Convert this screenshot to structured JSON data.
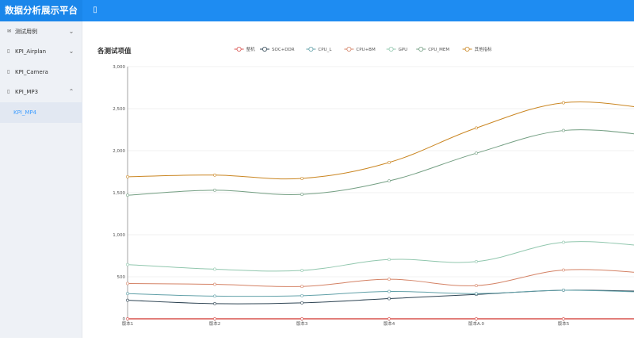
{
  "app": {
    "title": "数据分析展示平台",
    "menu_toggle_icon": "menu-icon"
  },
  "sidebar": {
    "items": [
      {
        "label": "测试用例",
        "icon": "envelope-icon",
        "chevron": "down"
      },
      {
        "label": "KPI_Airplan",
        "icon": "doc-icon",
        "chevron": "down"
      },
      {
        "label": "KPI_Camera",
        "icon": "doc-icon",
        "chevron": ""
      },
      {
        "label": "KPI_MP3",
        "icon": "doc-icon",
        "chevron": "up"
      },
      {
        "label": "KPI_MP4",
        "icon": "",
        "chevron": "",
        "active": true
      }
    ]
  },
  "colors": {
    "header": "#1e8cf2",
    "sidebar": "#eef1f6",
    "active": "#409eff"
  },
  "chart_data": {
    "type": "line",
    "title": "各测试项值",
    "categories": [
      "版本1",
      "版本2",
      "版本3",
      "版本4",
      "版本A.0",
      "版本5",
      ""
    ],
    "ylim": [
      0,
      3000
    ],
    "yticks": [
      "0",
      "500",
      "1,000",
      "1,500",
      "2,000",
      "2,500",
      "3,000"
    ],
    "legend_position": "top-center",
    "grid": true,
    "smooth": true,
    "series": [
      {
        "name": "整机",
        "color": "#d9534f",
        "values": [
          0,
          0,
          0,
          0,
          0,
          0,
          0
        ]
      },
      {
        "name": "SOC+DDR",
        "color": "#2f4554",
        "values": [
          220,
          180,
          190,
          240,
          290,
          340,
          325
        ]
      },
      {
        "name": "CPU_L",
        "color": "#61a0a8",
        "values": [
          300,
          270,
          275,
          325,
          300,
          340,
          315
        ]
      },
      {
        "name": "CPU+BM",
        "color": "#d48265",
        "values": [
          420,
          410,
          385,
          470,
          395,
          580,
          540
        ]
      },
      {
        "name": "GPU",
        "color": "#91c7ae",
        "values": [
          645,
          590,
          575,
          705,
          680,
          910,
          860
        ]
      },
      {
        "name": "CPU_MEM",
        "color": "#749f83",
        "values": [
          1470,
          1530,
          1480,
          1640,
          1970,
          2240,
          2180
        ]
      },
      {
        "name": "其他指标",
        "color": "#ca8622",
        "values": [
          1690,
          1710,
          1670,
          1860,
          2270,
          2570,
          2500
        ]
      }
    ]
  }
}
